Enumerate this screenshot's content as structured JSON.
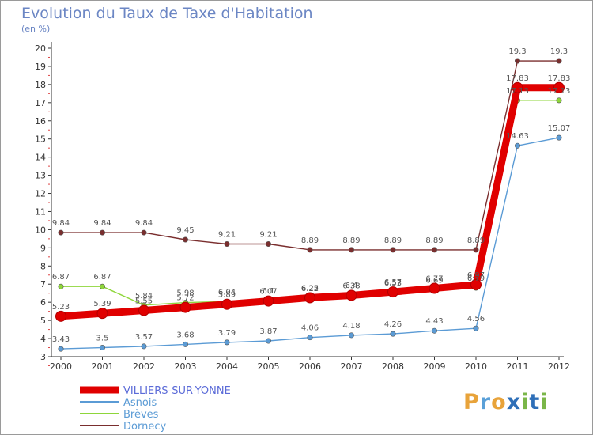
{
  "title": "Evolution du Taux de Taxe d'Habitation",
  "subtitle": "(en %)",
  "logo": {
    "text": "Proxiti",
    "letter_colors": [
      "#e8a33a",
      "#5aa0d8",
      "#e8a33a",
      "#2e6fb8",
      "#7ab648",
      "#2e6fb8",
      "#7ab648"
    ]
  },
  "chart_data": {
    "type": "line",
    "title": "Evolution du Taux de Taxe d'Habitation",
    "ylabel": "(en %)",
    "xlabel": "",
    "x": [
      "2000",
      "2001",
      "2002",
      "2003",
      "2004",
      "2005",
      "2006",
      "2007",
      "2008",
      "2009",
      "2010",
      "2011",
      "2012"
    ],
    "ylim": [
      3,
      20
    ],
    "yticks": [
      3,
      4,
      5,
      6,
      7,
      8,
      9,
      10,
      11,
      12,
      13,
      14,
      15,
      16,
      17,
      18,
      19,
      20
    ],
    "grid": false,
    "legend_position": "bottom-left",
    "series": [
      {
        "name": "VILLIERS-SUR-YONNE",
        "color": "#e00000",
        "legend_color": "#5b6bd8",
        "bold": true,
        "values": [
          5.23,
          5.39,
          5.55,
          5.72,
          5.89,
          6.07,
          6.25,
          6.38,
          6.57,
          6.77,
          6.97,
          17.83,
          17.83
        ],
        "labels": [
          "5.23",
          "5.39",
          "5.55",
          "5.72",
          "5.89",
          "6.07",
          "6.25",
          "6.38",
          "6.57",
          "6.77",
          "6.97",
          "17.83",
          "17.83"
        ]
      },
      {
        "name": "Asnois",
        "color": "#5b9bd5",
        "legend_color": "#5b9bd5",
        "bold": false,
        "values": [
          3.43,
          3.5,
          3.57,
          3.68,
          3.79,
          3.87,
          4.06,
          4.18,
          4.26,
          4.43,
          4.56,
          14.63,
          15.07
        ],
        "labels": [
          "3.43",
          "3.5",
          "3.57",
          "3.68",
          "3.79",
          "3.87",
          "4.06",
          "4.18",
          "4.26",
          "4.43",
          "4.56",
          "14.63",
          "15.07"
        ]
      },
      {
        "name": "Brèves",
        "color": "#8ed63a",
        "legend_color": "#5b9bd5",
        "bold": false,
        "values": [
          6.87,
          6.87,
          5.84,
          5.98,
          6.04,
          6.1,
          6.22,
          6.4,
          6.53,
          6.69,
          6.79,
          17.13,
          17.13
        ],
        "labels": [
          "6.87",
          "6.87",
          "5.84",
          "5.98",
          "6.04",
          "6.1",
          "6.22",
          "6.4",
          "6.53",
          "6.69",
          "6.79",
          "17.13",
          "17.13"
        ]
      },
      {
        "name": "Dornecy",
        "color": "#7a2e2e",
        "legend_color": "#5b9bd5",
        "bold": false,
        "values": [
          9.84,
          9.84,
          9.84,
          9.45,
          9.21,
          9.21,
          8.89,
          8.89,
          8.89,
          8.89,
          8.89,
          19.3,
          19.3
        ],
        "labels": [
          "9.84",
          "9.84",
          "9.84",
          "9.45",
          "9.21",
          "9.21",
          "8.89",
          "8.89",
          "8.89",
          "8.89",
          "8.89",
          "19.3",
          "19.3"
        ]
      }
    ]
  }
}
